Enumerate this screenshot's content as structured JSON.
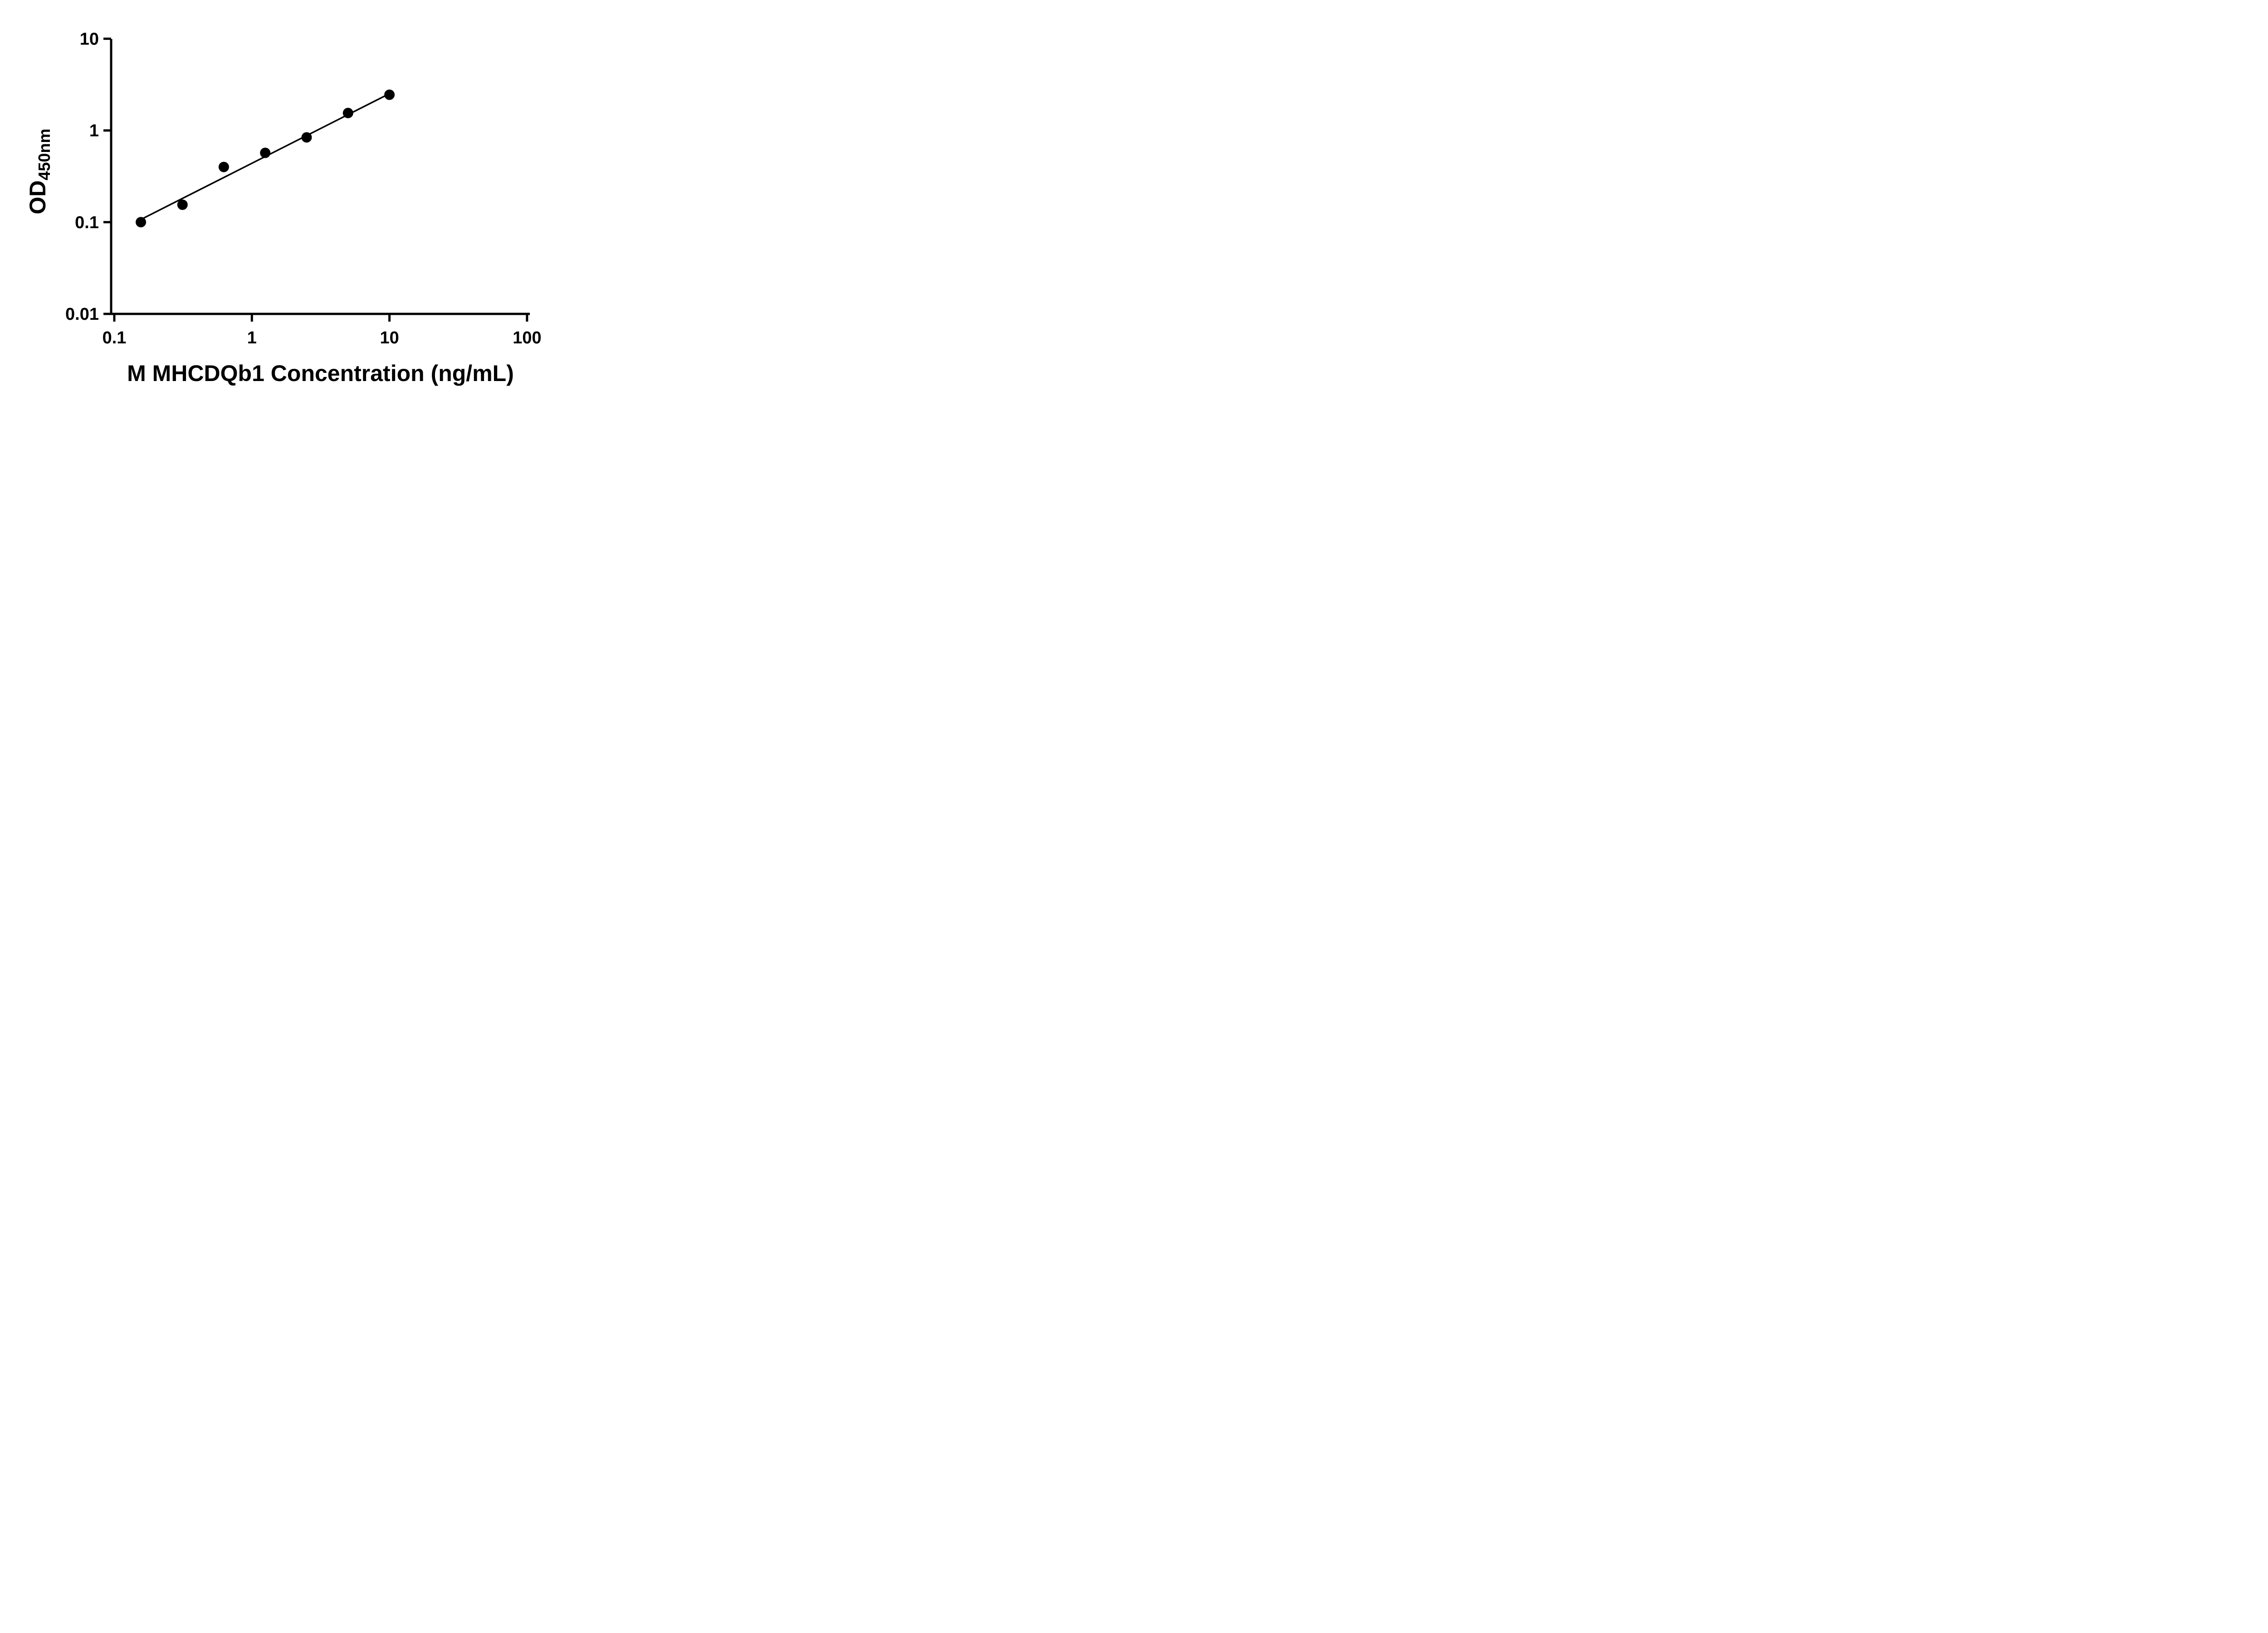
{
  "page": {
    "background_color": "#ffffff"
  },
  "chart_data": {
    "type": "scatter",
    "title": "",
    "xlabel": "M MHCDQb1 Concentration (ng/mL)",
    "ylabel_main": "OD",
    "ylabel_sub": "450nm",
    "x_scale": "log",
    "y_scale": "log",
    "xlim": [
      0.1,
      100
    ],
    "ylim": [
      0.01,
      10
    ],
    "grid": false,
    "legend": false,
    "axis_color": "#000000",
    "x_ticks": [
      {
        "value": 0.1,
        "label": "0.1"
      },
      {
        "value": 1,
        "label": "1"
      },
      {
        "value": 10,
        "label": "10"
      },
      {
        "value": 100,
        "label": "100"
      }
    ],
    "y_ticks": [
      {
        "value": 0.01,
        "label": "0.01"
      },
      {
        "value": 0.1,
        "label": "0.1"
      },
      {
        "value": 1,
        "label": "1"
      },
      {
        "value": 10,
        "label": "10"
      }
    ],
    "series": [
      {
        "name": "standard-curve-points",
        "marker": "circle",
        "color": "#000000",
        "points": [
          {
            "x": 0.156,
            "y": 0.1
          },
          {
            "x": 0.313,
            "y": 0.155
          },
          {
            "x": 0.625,
            "y": 0.4
          },
          {
            "x": 1.25,
            "y": 0.57
          },
          {
            "x": 2.5,
            "y": 0.84
          },
          {
            "x": 5,
            "y": 1.55
          },
          {
            "x": 10,
            "y": 2.45
          }
        ]
      }
    ],
    "trendline": {
      "type": "power-fit",
      "color": "#000000",
      "x1": 0.156,
      "y1": 0.107,
      "x2": 10,
      "y2": 2.52
    }
  }
}
